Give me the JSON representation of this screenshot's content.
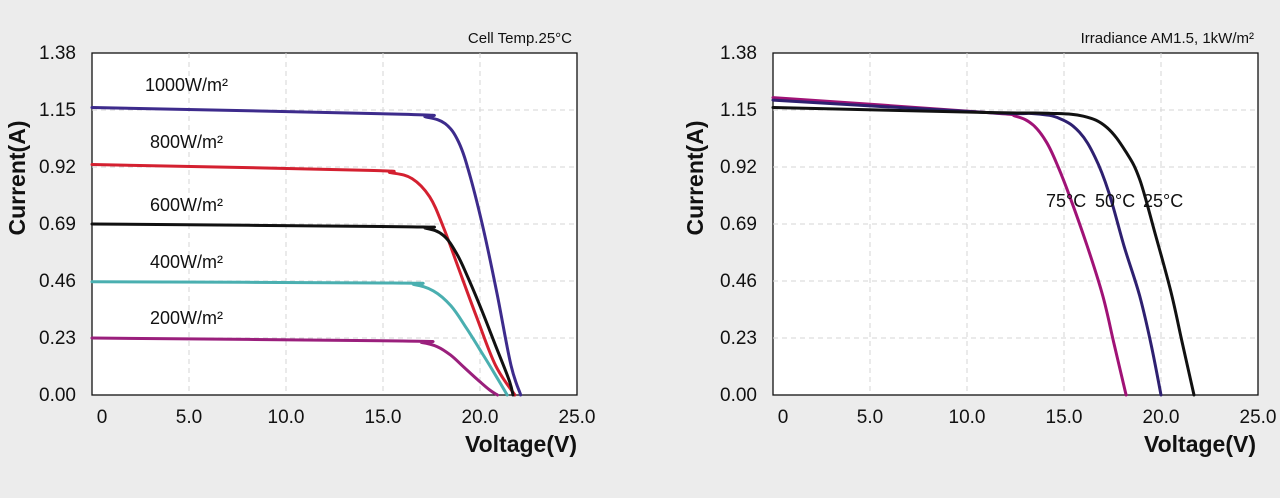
{
  "chart_data": [
    {
      "type": "line",
      "title": "Cell Temp.25°C",
      "xlabel": "Voltage(V)",
      "ylabel": "Current(A)",
      "xlim": [
        0,
        25
      ],
      "ylim": [
        0,
        1.38
      ],
      "xticks": [
        "0",
        "5.0",
        "10.0",
        "15.0",
        "20.0",
        "25.0"
      ],
      "yticks": [
        "0.00",
        "0.23",
        "0.46",
        "0.69",
        "0.92",
        "1.15",
        "1.38"
      ],
      "grid": true,
      "series": [
        {
          "name": "1000W/m²",
          "color": "#3d2b8c",
          "points": [
            [
              0,
              1.16
            ],
            [
              16,
              1.133
            ],
            [
              17.2,
              1.122
            ],
            [
              18.2,
              1.095
            ],
            [
              18.9,
              1.02
            ],
            [
              19.5,
              0.88
            ],
            [
              20.2,
              0.66
            ],
            [
              20.9,
              0.4
            ],
            [
              21.6,
              0.12
            ],
            [
              22.1,
              0
            ]
          ]
        },
        {
          "name": "800W/m²",
          "color": "#d42030",
          "points": [
            [
              0,
              0.93
            ],
            [
              14,
              0.907
            ],
            [
              15.4,
              0.897
            ],
            [
              16.5,
              0.873
            ],
            [
              17.4,
              0.8
            ],
            [
              18.1,
              0.68
            ],
            [
              18.9,
              0.51
            ],
            [
              19.8,
              0.32
            ],
            [
              20.8,
              0.12
            ],
            [
              21.8,
              0
            ]
          ]
        },
        {
          "name": "600W/m²",
          "color": "#111111",
          "points": [
            [
              0,
              0.69
            ],
            [
              16,
              0.679
            ],
            [
              17.2,
              0.673
            ],
            [
              18.1,
              0.645
            ],
            [
              18.8,
              0.57
            ],
            [
              19.4,
              0.47
            ],
            [
              20.1,
              0.34
            ],
            [
              20.8,
              0.2
            ],
            [
              21.5,
              0.06
            ],
            [
              21.7,
              0
            ]
          ]
        },
        {
          "name": "400W/m²",
          "color": "#4aafb0",
          "points": [
            [
              0,
              0.457
            ],
            [
              15.5,
              0.452
            ],
            [
              16.6,
              0.446
            ],
            [
              17.6,
              0.42
            ],
            [
              18.5,
              0.36
            ],
            [
              19.3,
              0.27
            ],
            [
              20.1,
              0.17
            ],
            [
              20.8,
              0.08
            ],
            [
              21.4,
              0
            ]
          ]
        },
        {
          "name": "200W/m²",
          "color": "#9a1f7c",
          "points": [
            [
              0,
              0.23
            ],
            [
              16,
              0.218
            ],
            [
              17.0,
              0.212
            ],
            [
              17.8,
              0.195
            ],
            [
              18.5,
              0.16
            ],
            [
              19.2,
              0.11
            ],
            [
              19.9,
              0.06
            ],
            [
              20.5,
              0.02
            ],
            [
              20.9,
              0
            ]
          ]
        }
      ]
    },
    {
      "type": "line",
      "title": "Irradiance AM1.5, 1kW/m²",
      "xlabel": "Voltage(V)",
      "ylabel": "Current(A)",
      "xlim": [
        0,
        25
      ],
      "ylim": [
        0,
        1.38
      ],
      "xticks": [
        "0",
        "5.0",
        "10.0",
        "15.0",
        "20.0",
        "25.0"
      ],
      "yticks": [
        "0.00",
        "0.23",
        "0.46",
        "0.69",
        "0.92",
        "1.15",
        "1.38"
      ],
      "grid": true,
      "series": [
        {
          "name": "75°C",
          "color": "#a01276",
          "points": [
            [
              0,
              1.2
            ],
            [
              11,
              1.14
            ],
            [
              12.5,
              1.125
            ],
            [
              13.4,
              1.09
            ],
            [
              14.1,
              1.02
            ],
            [
              14.7,
              0.92
            ],
            [
              15.3,
              0.8
            ],
            [
              16.2,
              0.6
            ],
            [
              17.0,
              0.4
            ],
            [
              17.6,
              0.2
            ],
            [
              18.2,
              0
            ]
          ]
        },
        {
          "name": "50°C",
          "color": "#2e2070",
          "points": [
            [
              0,
              1.19
            ],
            [
              11,
              1.14
            ],
            [
              13.5,
              1.135
            ],
            [
              14.8,
              1.115
            ],
            [
              15.8,
              1.06
            ],
            [
              16.6,
              0.96
            ],
            [
              17.3,
              0.82
            ],
            [
              18.1,
              0.6
            ],
            [
              18.9,
              0.4
            ],
            [
              19.5,
              0.2
            ],
            [
              20.0,
              0
            ]
          ]
        },
        {
          "name": "25°C",
          "color": "#111111",
          "points": [
            [
              0,
              1.16
            ],
            [
              11,
              1.14
            ],
            [
              14.2,
              1.137
            ],
            [
              16.0,
              1.125
            ],
            [
              17.2,
              1.08
            ],
            [
              18.2,
              0.98
            ],
            [
              18.9,
              0.87
            ],
            [
              19.7,
              0.65
            ],
            [
              20.5,
              0.42
            ],
            [
              21.1,
              0.21
            ],
            [
              21.7,
              0
            ]
          ]
        }
      ]
    }
  ]
}
